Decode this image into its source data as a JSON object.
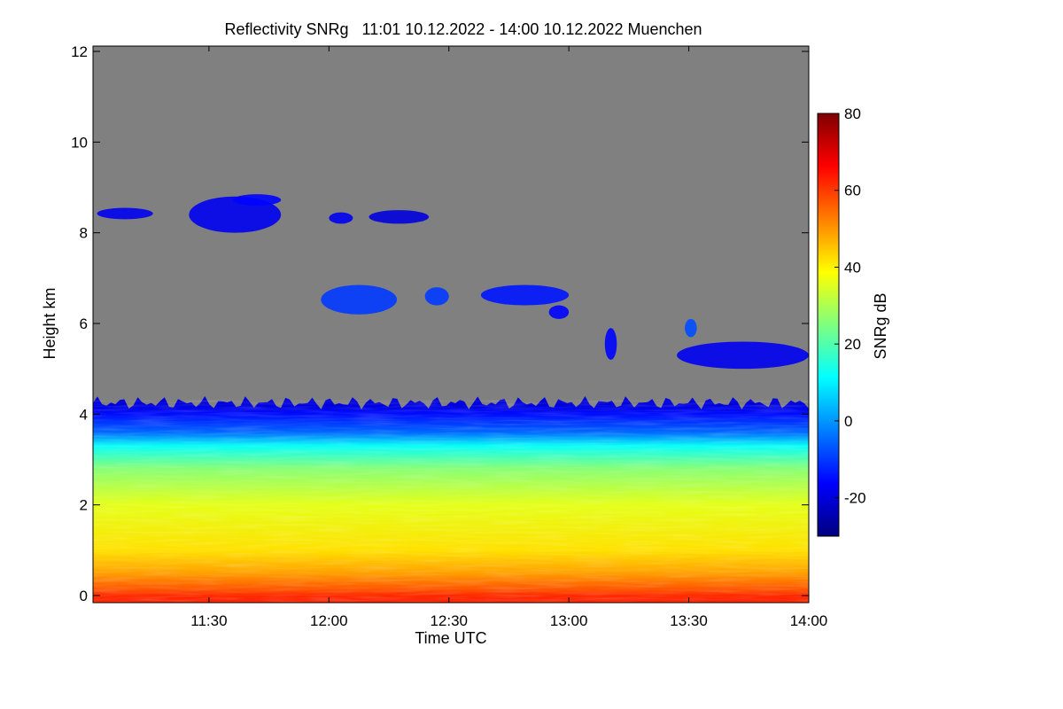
{
  "chart_data": {
    "type": "heatmap",
    "title": "Reflectivity SNRg   11:01 10.12.2022 - 14:00 10.12.2022 Muenchen",
    "xlabel": "Time UTC",
    "ylabel": "Height km",
    "colorbar_label": "SNRg dB",
    "x_range_minutes_utc": [
      661,
      840
    ],
    "xlim": [
      "11:01",
      "14:00"
    ],
    "ylim": [
      0,
      12
    ],
    "x_ticks": [
      {
        "minute": 690,
        "label": "11:30"
      },
      {
        "minute": 720,
        "label": "12:00"
      },
      {
        "minute": 750,
        "label": "12:30"
      },
      {
        "minute": 780,
        "label": "13:00"
      },
      {
        "minute": 810,
        "label": "13:30"
      },
      {
        "minute": 840,
        "label": "14:00"
      }
    ],
    "y_ticks": [
      {
        "value": 0,
        "label": "0"
      },
      {
        "value": 2,
        "label": "2"
      },
      {
        "value": 4,
        "label": "4"
      },
      {
        "value": 6,
        "label": "6"
      },
      {
        "value": 8,
        "label": "8"
      },
      {
        "value": 10,
        "label": "10"
      },
      {
        "value": 12,
        "label": "12"
      }
    ],
    "colorbar": {
      "range": [
        -30,
        80
      ],
      "ticks": [
        {
          "value": -20,
          "label": "-20"
        },
        {
          "value": 0,
          "label": "0"
        },
        {
          "value": 20,
          "label": "20"
        },
        {
          "value": 40,
          "label": "40"
        },
        {
          "value": 60,
          "label": "60"
        },
        {
          "value": 80,
          "label": "80"
        }
      ],
      "colormap": [
        "#00007f",
        "#0000ff",
        "#007fff",
        "#00ffff",
        "#7fff7f",
        "#ffff00",
        "#ff7f00",
        "#ff0000",
        "#7f0000"
      ]
    },
    "background_color": "#808080",
    "main_layer": {
      "description_values": "SNRg dB by height (km)",
      "profile": [
        {
          "height": 0.0,
          "snr": 62
        },
        {
          "height": 0.1,
          "snr": 58
        },
        {
          "height": 0.5,
          "snr": 49
        },
        {
          "height": 1.0,
          "snr": 42
        },
        {
          "height": 2.0,
          "snr": 36
        },
        {
          "height": 2.8,
          "snr": 26
        },
        {
          "height": 3.3,
          "snr": 12
        },
        {
          "height": 3.6,
          "snr": -5
        },
        {
          "height": 4.0,
          "snr": -15
        },
        {
          "height": 4.2,
          "snr": -20
        }
      ],
      "top_height_km": [
        4.1,
        4.4
      ]
    },
    "cloud_patches": [
      {
        "t_start": 662,
        "t_end": 676,
        "h_bottom": 8.3,
        "h_top": 8.55,
        "snr": -18
      },
      {
        "t_start": 685,
        "t_end": 708,
        "h_bottom": 8.0,
        "h_top": 8.8,
        "snr": -18
      },
      {
        "t_start": 696,
        "t_end": 708,
        "h_bottom": 8.6,
        "h_top": 8.85,
        "snr": -16
      },
      {
        "t_start": 720,
        "t_end": 726,
        "h_bottom": 8.2,
        "h_top": 8.45,
        "snr": -18
      },
      {
        "t_start": 730,
        "t_end": 745,
        "h_bottom": 8.2,
        "h_top": 8.5,
        "snr": -20
      },
      {
        "t_start": 718,
        "t_end": 737,
        "h_bottom": 6.2,
        "h_top": 6.85,
        "snr": -10
      },
      {
        "t_start": 744,
        "t_end": 750,
        "h_bottom": 6.4,
        "h_top": 6.8,
        "snr": -10
      },
      {
        "t_start": 758,
        "t_end": 780,
        "h_bottom": 6.4,
        "h_top": 6.85,
        "snr": -14
      },
      {
        "t_start": 775,
        "t_end": 780,
        "h_bottom": 6.1,
        "h_top": 6.4,
        "snr": -16
      },
      {
        "t_start": 789,
        "t_end": 792,
        "h_bottom": 5.2,
        "h_top": 5.9,
        "snr": -16
      },
      {
        "t_start": 809,
        "t_end": 812,
        "h_bottom": 5.7,
        "h_top": 6.1,
        "snr": -8
      },
      {
        "t_start": 807,
        "t_end": 840,
        "h_bottom": 5.0,
        "h_top": 5.6,
        "snr": -18
      }
    ]
  }
}
